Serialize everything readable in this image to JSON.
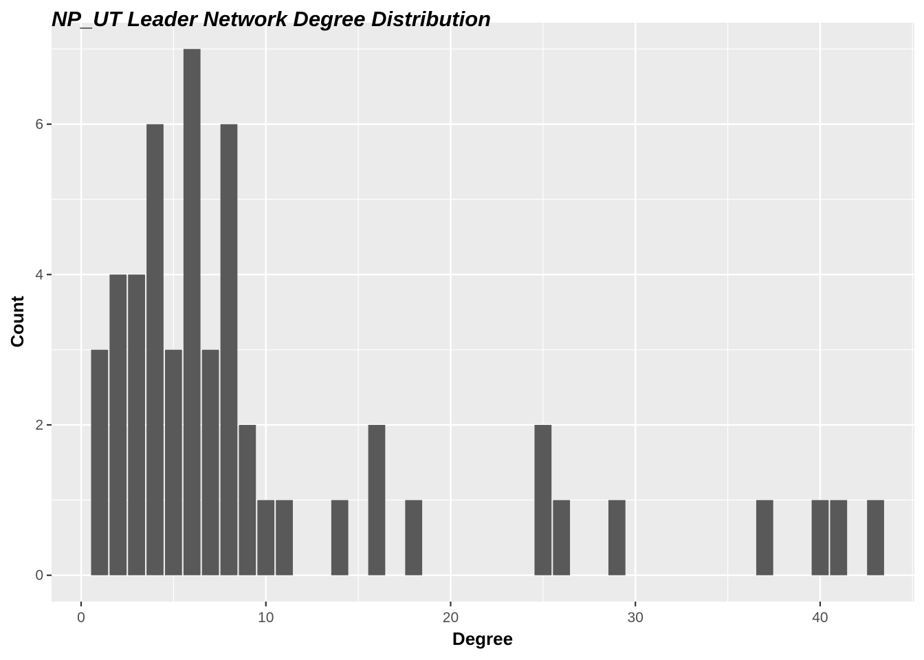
{
  "chart_data": {
    "type": "bar",
    "title": "NP_UT Leader Network Degree Distribution",
    "xlabel": "Degree",
    "ylabel": "Count",
    "xlim": [
      -1.6,
      45.1
    ],
    "ylim": [
      -0.35,
      7.35
    ],
    "x_ticks": [
      0,
      10,
      20,
      30,
      40
    ],
    "y_ticks": [
      0,
      2,
      4,
      6
    ],
    "grid": true,
    "legend": "none",
    "bar_color": "#595959",
    "panel_color": "#ebebeb",
    "x": [
      1,
      2,
      3,
      4,
      5,
      6,
      7,
      8,
      9,
      10,
      11,
      14,
      16,
      18,
      25,
      26,
      29,
      37,
      40,
      41,
      43
    ],
    "values": [
      3,
      4,
      4,
      6,
      3,
      7,
      3,
      6,
      2,
      1,
      1,
      1,
      2,
      1,
      2,
      1,
      1,
      1,
      1,
      1,
      1
    ]
  }
}
